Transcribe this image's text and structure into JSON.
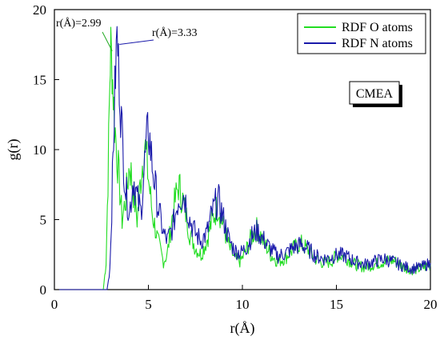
{
  "chart_data": {
    "type": "line",
    "xlabel": "r(Å)",
    "ylabel": "g(r)",
    "xlim": [
      0,
      20
    ],
    "ylim": [
      0,
      20
    ],
    "xticks": [
      0,
      5,
      10,
      15,
      20
    ],
    "yticks": [
      0,
      5,
      10,
      15,
      20
    ],
    "grid": false,
    "legend_position": "top-right",
    "series": [
      {
        "name": "RDF O atoms",
        "color": "#22dd22",
        "x": [
          0,
          2.6,
          2.75,
          2.85,
          2.95,
          3.0,
          3.1,
          3.2,
          3.4,
          3.6,
          3.8,
          4.0,
          4.2,
          4.4,
          4.6,
          4.8,
          5.0,
          5.2,
          5.5,
          5.8,
          6.0,
          6.3,
          6.6,
          6.9,
          7.2,
          7.5,
          7.8,
          8.1,
          8.4,
          8.7,
          9.0,
          9.3,
          9.6,
          9.9,
          10.2,
          10.5,
          10.8,
          11.1,
          11.5,
          11.9,
          12.3,
          12.7,
          13.1,
          13.5,
          13.9,
          14.3,
          14.7,
          15.1,
          15.5,
          16.0,
          16.5,
          17.0,
          17.5,
          18.0,
          18.5,
          19.0,
          19.5,
          20.0
        ],
        "y": [
          0,
          0,
          2.0,
          8.0,
          15.0,
          17.5,
          15.0,
          12.0,
          8.5,
          5.0,
          6.5,
          9.0,
          7.0,
          5.0,
          8.0,
          10.5,
          8.0,
          5.5,
          3.5,
          2.0,
          2.5,
          5.5,
          7.5,
          6.0,
          4.0,
          3.0,
          2.5,
          3.5,
          5.0,
          6.0,
          4.5,
          3.0,
          2.2,
          2.0,
          2.8,
          3.8,
          4.4,
          3.5,
          2.5,
          2.0,
          2.3,
          2.9,
          3.3,
          2.8,
          2.2,
          1.9,
          2.0,
          2.5,
          2.3,
          1.8,
          1.6,
          1.8,
          2.0,
          2.1,
          1.7,
          1.4,
          1.5,
          1.8
        ]
      },
      {
        "name": "RDF N atoms",
        "color": "#1a1aaa",
        "x": [
          0,
          2.8,
          2.95,
          3.05,
          3.15,
          3.25,
          3.33,
          3.45,
          3.6,
          3.8,
          4.0,
          4.2,
          4.4,
          4.6,
          4.8,
          5.0,
          5.2,
          5.5,
          5.8,
          6.0,
          6.3,
          6.6,
          6.9,
          7.2,
          7.5,
          7.8,
          8.1,
          8.4,
          8.7,
          9.0,
          9.3,
          9.6,
          9.9,
          10.2,
          10.5,
          10.8,
          11.1,
          11.5,
          11.9,
          12.3,
          12.7,
          13.1,
          13.5,
          13.9,
          14.3,
          14.7,
          15.1,
          15.5,
          16.0,
          16.5,
          17.0,
          17.5,
          18.0,
          18.5,
          19.0,
          19.5,
          20.0
        ],
        "y": [
          0,
          0,
          1.5,
          6.0,
          11.0,
          15.5,
          18.2,
          15.0,
          11.0,
          7.0,
          5.5,
          8.0,
          6.5,
          5.5,
          9.0,
          11.5,
          9.0,
          6.0,
          4.0,
          3.5,
          4.5,
          6.5,
          6.8,
          5.0,
          4.0,
          3.5,
          4.0,
          5.5,
          6.5,
          5.0,
          3.5,
          2.8,
          2.6,
          3.0,
          3.8,
          4.2,
          3.6,
          2.9,
          2.4,
          2.6,
          3.0,
          3.2,
          2.9,
          2.4,
          2.2,
          2.3,
          2.5,
          2.4,
          2.0,
          1.8,
          2.0,
          2.2,
          2.0,
          1.7,
          1.5,
          1.6,
          1.9
        ]
      }
    ],
    "annotations": [
      {
        "text": "r(Å)=2.99",
        "x": 2.99,
        "y": 17.5,
        "color": "#22aa22"
      },
      {
        "text": "r(Å)=3.33",
        "x": 3.33,
        "y": 18.2,
        "color": "#1a1aaa"
      }
    ],
    "label_box": "CMEA"
  }
}
